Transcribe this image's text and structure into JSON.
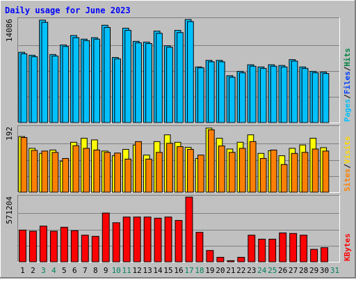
{
  "chart_data": {
    "type": "bar",
    "title": "Daily usage for June 2023",
    "categories": [
      "1",
      "2",
      "3",
      "4",
      "5",
      "6",
      "7",
      "8",
      "9",
      "10",
      "11",
      "12",
      "13",
      "14",
      "15",
      "16",
      "17",
      "18",
      "19",
      "20",
      "21",
      "22",
      "23",
      "24",
      "25",
      "26",
      "27",
      "28",
      "29",
      "30",
      "31"
    ],
    "weekend_days": [
      "3",
      "4",
      "10",
      "11",
      "17",
      "18",
      "24",
      "25",
      "31"
    ],
    "panels": [
      {
        "id": "pages-files-hits",
        "max_label": "14086",
        "ylim": [
          0,
          14086
        ],
        "grid": true,
        "legend": [
          "Pages",
          "/",
          "Files",
          "/",
          "Hits"
        ],
        "series": [
          {
            "name": "Hits",
            "values": [
              9600,
              9200,
              14000,
              9300,
              10600,
              11900,
              11400,
              11600,
              13300,
              8900,
              12900,
              11100,
              11000,
              12500,
              10500,
              12600,
              14086,
              7600,
              8500,
              8500,
              6400,
              7000,
              7900,
              7600,
              7900,
              7800,
              8600,
              7600,
              7000,
              6900
            ]
          },
          {
            "name": "Files",
            "values": [
              9400,
              9000,
              13700,
              9100,
              10400,
              11600,
              11200,
              11400,
              13000,
              8700,
              12600,
              10900,
              10800,
              12200,
              10300,
              12300,
              13800,
              7500,
              8300,
              8300,
              6200,
              6800,
              7700,
              7400,
              7700,
              7600,
              8400,
              7400,
              6800,
              6700
            ]
          }
        ]
      },
      {
        "id": "visits-sites",
        "max_label": "192",
        "ylim": [
          0,
          192
        ],
        "grid": true,
        "legend": [
          "Sites",
          "/",
          "Visits"
        ],
        "series": [
          {
            "name": "Visits",
            "values": [
              165,
              130,
              115,
              125,
              92,
              148,
              160,
              155,
              122,
              108,
              127,
              140,
              110,
              150,
              170,
              148,
              133,
              100,
              190,
              160,
              128,
              148,
              170,
              115,
              123,
              108,
              130,
              140,
              160,
              132
            ]
          },
          {
            "name": "Sites",
            "values": [
              162,
              124,
              122,
              118,
              100,
              138,
              130,
              125,
              118,
              116,
              98,
              150,
              98,
              118,
              145,
              135,
              127,
              110,
              185,
              137,
              118,
              130,
              150,
              100,
              125,
              82,
              115,
              118,
              128,
              122
            ]
          }
        ]
      },
      {
        "id": "kbytes",
        "max_label": "571204",
        "ylim": [
          0,
          571204
        ],
        "grid": true,
        "legend": [
          "KBytes"
        ],
        "series": [
          {
            "name": "KBytes",
            "values": [
              280000,
              270000,
              315000,
              270000,
              305000,
              275000,
              235000,
              225000,
              430000,
              345000,
              395000,
              395000,
              395000,
              385000,
              395000,
              365000,
              571204,
              260000,
              100000,
              40000,
              10000,
              40000,
              235000,
              200000,
              200000,
              255000,
              250000,
              235000,
              110000,
              125000
            ]
          }
        ]
      }
    ]
  },
  "colors": {
    "background": "#c0c0c0",
    "title": "#0000ff",
    "hits": "#00c0ff",
    "files": "#00c0ff",
    "pages": "#00c0ff",
    "visits": "#ffff00",
    "sites": "#ff8000",
    "kbytes": "#ff0000",
    "legend_pages": "#00c0ff",
    "legend_files": "#0040ff",
    "legend_hits": "#008040",
    "legend_sites": "#ff8000",
    "legend_visits": "#ffd700",
    "legend_kbytes": "#ff0000",
    "weekday_label": "#000000",
    "weekend_label": "#00805c"
  }
}
